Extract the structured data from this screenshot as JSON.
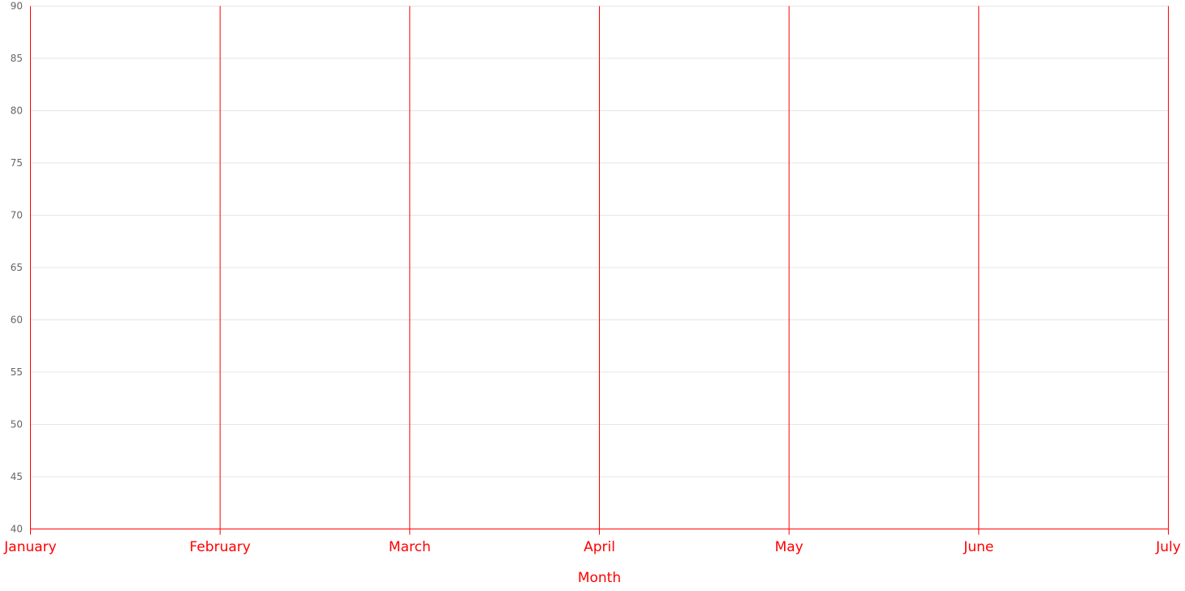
{
  "chart_data": {
    "type": "line",
    "title": "",
    "xlabel": "Month",
    "ylabel": "",
    "categories": [
      "January",
      "February",
      "March",
      "April",
      "May",
      "June",
      "July"
    ],
    "series": [],
    "ylim": [
      40,
      90
    ],
    "y_ticks": [
      40,
      45,
      50,
      55,
      60,
      65,
      70,
      75,
      80,
      85,
      90
    ],
    "grid": {
      "horizontal": true,
      "vertical": true
    },
    "legend": "none",
    "colors": {
      "x_axis": "#ff0000",
      "horizontal_grid": "#e5e5e5",
      "y_tick_text": "#666666"
    }
  }
}
